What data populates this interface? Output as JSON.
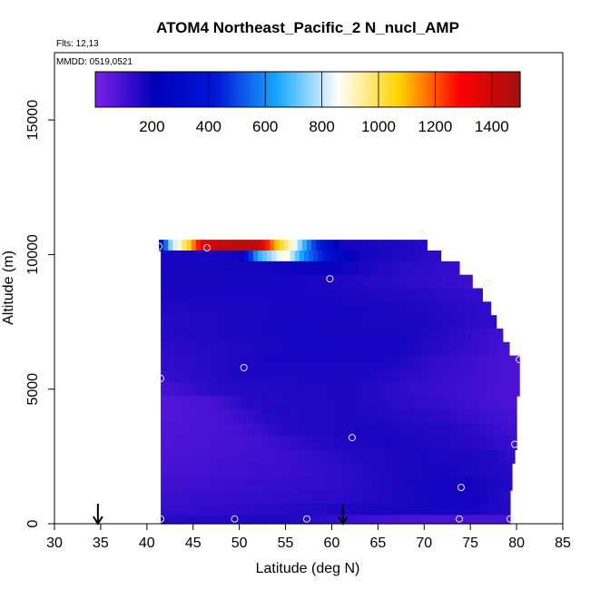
{
  "chart_data": {
    "type": "heatmap",
    "title": "ATOM4 Northeast_Pacific_2 N_nucl_AMP",
    "annotations": {
      "flights": "Flts: 12,13",
      "dates": "MMDD: 0519,0521"
    },
    "xlabel": "Latitude (deg N)",
    "ylabel": "Altitude (m)",
    "xlim": [
      30,
      85
    ],
    "ylim": [
      0,
      17500
    ],
    "x_ticks": [
      30,
      35,
      40,
      45,
      50,
      55,
      60,
      65,
      70,
      75,
      80,
      85
    ],
    "y_ticks": [
      0,
      5000,
      10000,
      15000
    ],
    "colorbar": {
      "range": [
        0,
        1500
      ],
      "ticks": [
        200,
        400,
        600,
        800,
        1000,
        1200,
        1400
      ],
      "colors": [
        "#7a1fe6",
        "#0000b8",
        "#0018d8",
        "#1aa8ff",
        "#ffffff",
        "#ffd400",
        "#ff0000",
        "#a01010"
      ]
    },
    "layers": [
      {
        "alt": 10300,
        "lat_range": [
          41.3,
          70.3
        ],
        "values": [
          {
            "lat": 41.3,
            "v": 120
          },
          {
            "lat": 42.3,
            "v": 700
          },
          {
            "lat": 43.5,
            "v": 900
          },
          {
            "lat": 44.5,
            "v": 1050
          },
          {
            "lat": 46.0,
            "v": 1350
          },
          {
            "lat": 48.0,
            "v": 1420
          },
          {
            "lat": 50.0,
            "v": 1450
          },
          {
            "lat": 52.0,
            "v": 1420
          },
          {
            "lat": 54.0,
            "v": 1100
          },
          {
            "lat": 56.0,
            "v": 850
          },
          {
            "lat": 58.0,
            "v": 500
          },
          {
            "lat": 61.0,
            "v": 180
          },
          {
            "lat": 64.0,
            "v": 170
          },
          {
            "lat": 70.3,
            "v": 150
          }
        ]
      },
      {
        "alt": 10000,
        "lat_range": [
          41.5,
          71.8
        ],
        "values": [
          {
            "lat": 41.5,
            "v": 170
          },
          {
            "lat": 50.0,
            "v": 180
          },
          {
            "lat": 52.0,
            "v": 650
          },
          {
            "lat": 55.0,
            "v": 900
          },
          {
            "lat": 57.0,
            "v": 600
          },
          {
            "lat": 60.0,
            "v": 350
          },
          {
            "lat": 63.0,
            "v": 180
          },
          {
            "lat": 71.8,
            "v": 140
          }
        ]
      },
      {
        "alt": 9500,
        "lat_range": [
          41.5,
          73.8
        ],
        "values": [
          {
            "lat": 41.5,
            "v": 170
          },
          {
            "lat": 52.0,
            "v": 180
          },
          {
            "lat": 60.0,
            "v": 200
          },
          {
            "lat": 66.0,
            "v": 150
          },
          {
            "lat": 73.8,
            "v": 120
          }
        ]
      },
      {
        "alt": 9000,
        "lat_range": [
          41.5,
          75.2
        ],
        "values": [
          {
            "lat": 41.5,
            "v": 170
          },
          {
            "lat": 55.0,
            "v": 175
          },
          {
            "lat": 65.0,
            "v": 150
          },
          {
            "lat": 75.2,
            "v": 110
          }
        ]
      },
      {
        "alt": 8500,
        "lat_range": [
          41.5,
          76.3
        ],
        "values": [
          {
            "lat": 41.5,
            "v": 170
          },
          {
            "lat": 60.0,
            "v": 170
          },
          {
            "lat": 70.0,
            "v": 150
          },
          {
            "lat": 76.3,
            "v": 120
          }
        ]
      },
      {
        "alt": 8000,
        "lat_range": [
          41.5,
          77.2
        ],
        "values": [
          {
            "lat": 41.5,
            "v": 160
          },
          {
            "lat": 60.0,
            "v": 175
          },
          {
            "lat": 70.0,
            "v": 160
          },
          {
            "lat": 77.2,
            "v": 130
          }
        ]
      },
      {
        "alt": 7500,
        "lat_range": [
          41.5,
          77.8
        ],
        "values": [
          {
            "lat": 41.5,
            "v": 150
          },
          {
            "lat": 55.0,
            "v": 175
          },
          {
            "lat": 70.0,
            "v": 165
          },
          {
            "lat": 77.8,
            "v": 130
          }
        ]
      },
      {
        "alt": 7000,
        "lat_range": [
          41.5,
          78.5
        ],
        "values": [
          {
            "lat": 41.5,
            "v": 150
          },
          {
            "lat": 55.0,
            "v": 175
          },
          {
            "lat": 68.0,
            "v": 170
          },
          {
            "lat": 74.0,
            "v": 140
          },
          {
            "lat": 78.5,
            "v": 100
          }
        ]
      },
      {
        "alt": 6500,
        "lat_range": [
          41.5,
          79.2
        ],
        "values": [
          {
            "lat": 41.5,
            "v": 140
          },
          {
            "lat": 55.0,
            "v": 170
          },
          {
            "lat": 68.0,
            "v": 170
          },
          {
            "lat": 74.0,
            "v": 130
          },
          {
            "lat": 79.2,
            "v": 90
          }
        ]
      },
      {
        "alt": 6000,
        "lat_range": [
          41.5,
          80.3
        ],
        "values": [
          {
            "lat": 41.5,
            "v": 130
          },
          {
            "lat": 52.0,
            "v": 170
          },
          {
            "lat": 66.0,
            "v": 170
          },
          {
            "lat": 73.0,
            "v": 120
          },
          {
            "lat": 80.3,
            "v": 80
          }
        ]
      },
      {
        "alt": 5500,
        "lat_range": [
          41.5,
          80.3
        ],
        "values": [
          {
            "lat": 41.5,
            "v": 120
          },
          {
            "lat": 50.0,
            "v": 165
          },
          {
            "lat": 64.0,
            "v": 165
          },
          {
            "lat": 72.0,
            "v": 120
          },
          {
            "lat": 80.3,
            "v": 80
          }
        ]
      },
      {
        "alt": 5000,
        "lat_range": [
          41.5,
          80.3
        ],
        "values": [
          {
            "lat": 41.5,
            "v": 90
          },
          {
            "lat": 48.0,
            "v": 150
          },
          {
            "lat": 62.0,
            "v": 165
          },
          {
            "lat": 70.0,
            "v": 120
          },
          {
            "lat": 80.3,
            "v": 80
          }
        ]
      },
      {
        "alt": 4500,
        "lat_range": [
          41.5,
          80.0
        ],
        "values": [
          {
            "lat": 41.5,
            "v": 70
          },
          {
            "lat": 47.0,
            "v": 90
          },
          {
            "lat": 51.0,
            "v": 150
          },
          {
            "lat": 62.0,
            "v": 165
          },
          {
            "lat": 70.0,
            "v": 130
          },
          {
            "lat": 80.0,
            "v": 80
          }
        ]
      },
      {
        "alt": 4000,
        "lat_range": [
          41.5,
          80.0
        ],
        "values": [
          {
            "lat": 41.5,
            "v": 70
          },
          {
            "lat": 48.0,
            "v": 90
          },
          {
            "lat": 53.0,
            "v": 150
          },
          {
            "lat": 62.0,
            "v": 165
          },
          {
            "lat": 72.0,
            "v": 140
          },
          {
            "lat": 80.0,
            "v": 90
          }
        ]
      },
      {
        "alt": 3500,
        "lat_range": [
          41.5,
          80.0
        ],
        "values": [
          {
            "lat": 41.5,
            "v": 75
          },
          {
            "lat": 50.0,
            "v": 95
          },
          {
            "lat": 55.0,
            "v": 150
          },
          {
            "lat": 63.0,
            "v": 170
          },
          {
            "lat": 74.0,
            "v": 150
          },
          {
            "lat": 80.0,
            "v": 100
          }
        ]
      },
      {
        "alt": 3000,
        "lat_range": [
          41.5,
          80.0
        ],
        "values": [
          {
            "lat": 41.5,
            "v": 80
          },
          {
            "lat": 52.0,
            "v": 100
          },
          {
            "lat": 58.0,
            "v": 150
          },
          {
            "lat": 66.0,
            "v": 170
          },
          {
            "lat": 76.0,
            "v": 150
          },
          {
            "lat": 80.0,
            "v": 110
          }
        ]
      },
      {
        "alt": 2500,
        "lat_range": [
          41.5,
          79.8
        ],
        "values": [
          {
            "lat": 41.5,
            "v": 85
          },
          {
            "lat": 55.0,
            "v": 110
          },
          {
            "lat": 62.0,
            "v": 155
          },
          {
            "lat": 70.0,
            "v": 170
          },
          {
            "lat": 77.0,
            "v": 160
          },
          {
            "lat": 79.8,
            "v": 130
          }
        ]
      },
      {
        "alt": 2000,
        "lat_range": [
          41.5,
          79.5
        ],
        "values": [
          {
            "lat": 41.5,
            "v": 90
          },
          {
            "lat": 58.0,
            "v": 120
          },
          {
            "lat": 65.0,
            "v": 160
          },
          {
            "lat": 72.0,
            "v": 175
          },
          {
            "lat": 79.5,
            "v": 150
          }
        ]
      },
      {
        "alt": 1500,
        "lat_range": [
          41.5,
          79.5
        ],
        "values": [
          {
            "lat": 41.5,
            "v": 100
          },
          {
            "lat": 60.0,
            "v": 130
          },
          {
            "lat": 68.0,
            "v": 170
          },
          {
            "lat": 75.0,
            "v": 185
          },
          {
            "lat": 79.5,
            "v": 150
          }
        ]
      },
      {
        "alt": 1000,
        "lat_range": [
          41.5,
          79.3
        ],
        "values": [
          {
            "lat": 41.5,
            "v": 110
          },
          {
            "lat": 60.0,
            "v": 140
          },
          {
            "lat": 70.0,
            "v": 175
          },
          {
            "lat": 76.0,
            "v": 185
          },
          {
            "lat": 79.3,
            "v": 140
          }
        ]
      },
      {
        "alt": 500,
        "lat_range": [
          41.5,
          79.3
        ],
        "values": [
          {
            "lat": 41.5,
            "v": 120
          },
          {
            "lat": 55.0,
            "v": 150
          },
          {
            "lat": 65.0,
            "v": 170
          },
          {
            "lat": 75.0,
            "v": 175
          },
          {
            "lat": 79.3,
            "v": 150
          }
        ]
      },
      {
        "alt": 150,
        "lat_range": [
          41.5,
          79.3
        ],
        "values": [
          {
            "lat": 41.5,
            "v": 150
          },
          {
            "lat": 55.0,
            "v": 160
          },
          {
            "lat": 62.0,
            "v": 110
          },
          {
            "lat": 70.0,
            "v": 80
          },
          {
            "lat": 79.3,
            "v": 90
          }
        ]
      }
    ],
    "sample_points": [
      {
        "lat": 41.3,
        "alt": 10300
      },
      {
        "lat": 46.5,
        "alt": 10250
      },
      {
        "lat": 69.8,
        "alt": 10750
      },
      {
        "lat": 59.8,
        "alt": 9100
      },
      {
        "lat": 76.8,
        "alt": 8950
      },
      {
        "lat": 80.3,
        "alt": 6100
      },
      {
        "lat": 41.5,
        "alt": 5400
      },
      {
        "lat": 50.5,
        "alt": 5800
      },
      {
        "lat": 62.2,
        "alt": 3200
      },
      {
        "lat": 79.8,
        "alt": 2950
      },
      {
        "lat": 74.0,
        "alt": 1350
      },
      {
        "lat": 41.5,
        "alt": 180
      },
      {
        "lat": 49.5,
        "alt": 180
      },
      {
        "lat": 57.3,
        "alt": 180
      },
      {
        "lat": 73.8,
        "alt": 180
      },
      {
        "lat": 79.3,
        "alt": 180
      }
    ],
    "arrows": [
      {
        "lat": 34.7
      },
      {
        "lat": 61.2
      }
    ],
    "grid": false,
    "legend": "top (colorbar)"
  }
}
